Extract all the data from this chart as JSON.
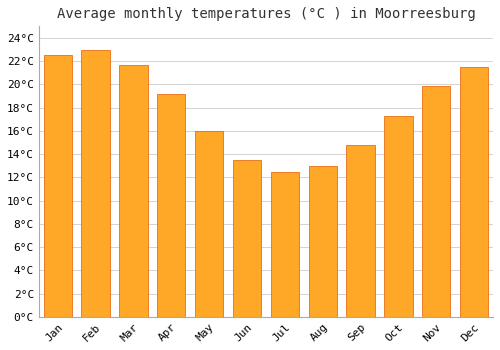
{
  "title": "Average monthly temperatures (°C ) in Moorreesburg",
  "months": [
    "Jan",
    "Feb",
    "Mar",
    "Apr",
    "May",
    "Jun",
    "Jul",
    "Aug",
    "Sep",
    "Oct",
    "Nov",
    "Dec"
  ],
  "values": [
    22.5,
    23.0,
    21.7,
    19.2,
    16.0,
    13.5,
    12.5,
    13.0,
    14.8,
    17.3,
    19.9,
    21.5
  ],
  "bar_color": "#FFA726",
  "bar_edge_color": "#E65C00",
  "background_color": "#FFFFFF",
  "grid_color": "#CCCCCC",
  "ylim": [
    0,
    25
  ],
  "yticks": [
    0,
    2,
    4,
    6,
    8,
    10,
    12,
    14,
    16,
    18,
    20,
    22,
    24
  ],
  "title_fontsize": 10,
  "tick_fontsize": 8,
  "title_font": "monospace",
  "tick_font": "monospace",
  "bar_width": 0.75
}
